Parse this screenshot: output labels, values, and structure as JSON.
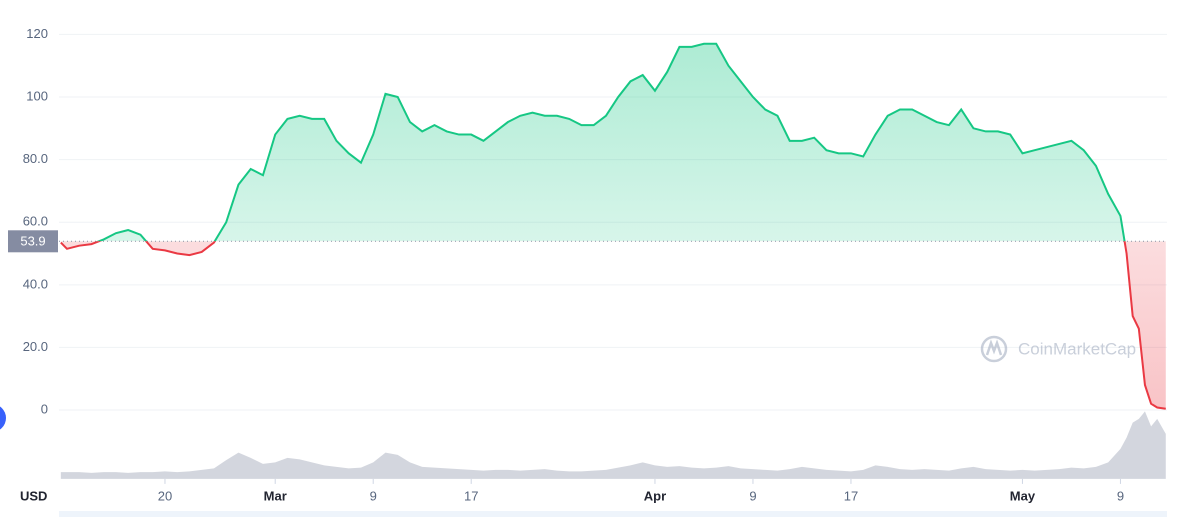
{
  "chart_data": {
    "type": "line",
    "currency": "USD",
    "watermark": "CoinMarketCap",
    "x": [
      42.5,
      43,
      44,
      45,
      46,
      47,
      48,
      49,
      50,
      51,
      52,
      53,
      54,
      55,
      56,
      57,
      58,
      59,
      60,
      61,
      62,
      63,
      64,
      65,
      66,
      67,
      68,
      69,
      70,
      71,
      72,
      73,
      74,
      75,
      76,
      77,
      78,
      79,
      80,
      81,
      82,
      83,
      84,
      85,
      86,
      87,
      88,
      89,
      90,
      91,
      92,
      93,
      94,
      95,
      96,
      97,
      98,
      99,
      100,
      101,
      102,
      103,
      104,
      105,
      106,
      107,
      108,
      109,
      110,
      111,
      112,
      113,
      114,
      115,
      116,
      117,
      118,
      119,
      120,
      121,
      122,
      123,
      124,
      125,
      126,
      127,
      128,
      129,
      129.5,
      130,
      130.5,
      131,
      131.5,
      132,
      132.7
    ],
    "series": [
      {
        "up_color": "#16c784",
        "down_color": "#ea3943",
        "values": [
          53.5,
          51.5,
          52.5,
          53,
          54.5,
          56.5,
          57.5,
          56,
          51.5,
          51,
          50,
          49.5,
          50.5,
          53.5,
          60,
          72,
          77,
          75,
          88,
          93,
          94,
          93,
          93,
          86,
          82,
          79,
          88,
          101,
          100,
          92,
          89,
          91,
          89,
          88,
          88,
          86,
          89,
          92,
          94,
          95,
          94,
          94,
          93,
          91,
          91,
          94,
          100,
          105,
          107,
          102,
          108,
          116,
          116,
          117,
          117,
          110,
          105,
          100,
          96,
          94,
          86,
          86,
          87,
          83,
          82,
          82,
          81,
          88,
          94,
          96,
          96,
          94,
          92,
          91,
          96,
          90,
          89,
          89,
          88,
          82,
          83,
          84,
          85,
          86,
          83,
          78,
          69,
          62,
          50,
          30,
          26,
          8,
          2,
          0.8,
          0.4
        ]
      }
    ],
    "volume": {
      "color": "#c8ccd6",
      "values": [
        9,
        9,
        9,
        8,
        9,
        9,
        8,
        9,
        9,
        10,
        9,
        10,
        12,
        14,
        25,
        35,
        28,
        20,
        22,
        28,
        26,
        22,
        18,
        16,
        14,
        15,
        22,
        35,
        32,
        22,
        16,
        15,
        14,
        13,
        12,
        11,
        12,
        12,
        11,
        12,
        13,
        11,
        10,
        10,
        11,
        12,
        15,
        18,
        22,
        18,
        16,
        17,
        15,
        14,
        15,
        17,
        14,
        13,
        12,
        11,
        13,
        16,
        14,
        12,
        11,
        10,
        12,
        18,
        16,
        13,
        12,
        13,
        12,
        11,
        14,
        16,
        13,
        12,
        11,
        12,
        11,
        12,
        13,
        15,
        14,
        16,
        22,
        40,
        55,
        75,
        80,
        90,
        70,
        80,
        60
      ]
    },
    "baseline": 53.9,
    "xlim": [
      42.35,
      132.8
    ],
    "xticks": [
      {
        "value": 51,
        "label": "20"
      },
      {
        "value": 60,
        "label": "Mar"
      },
      {
        "value": 68,
        "label": "9"
      },
      {
        "value": 76,
        "label": "17"
      },
      {
        "value": 91,
        "label": "Apr"
      },
      {
        "value": 99,
        "label": "9"
      },
      {
        "value": 107,
        "label": "17"
      },
      {
        "value": 121,
        "label": "May"
      },
      {
        "value": 129,
        "label": "9"
      }
    ],
    "ylim": [
      -22,
      126
    ],
    "yticks": [
      0,
      {
        "value": 20,
        "label": "20.0"
      },
      {
        "value": 40,
        "label": "40.0"
      },
      {
        "value": 60,
        "label": "60.0"
      },
      {
        "value": 80,
        "label": "80.0"
      },
      100,
      120
    ],
    "grid": true
  }
}
